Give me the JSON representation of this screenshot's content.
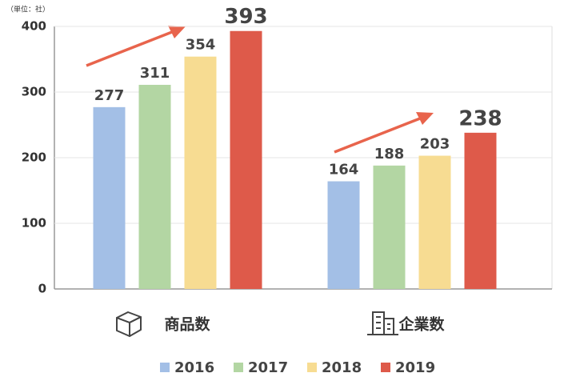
{
  "chart_data": {
    "type": "bar",
    "unit_label": "（単位：社）",
    "categories": [
      "商品数",
      "企業数"
    ],
    "series": [
      {
        "name": "2016",
        "color": "#a3bfe6",
        "values": [
          277,
          164
        ]
      },
      {
        "name": "2017",
        "color": "#b3d6a3",
        "values": [
          311,
          188
        ]
      },
      {
        "name": "2018",
        "color": "#f7dc92",
        "values": [
          354,
          203
        ]
      },
      {
        "name": "2019",
        "color": "#de5a4a",
        "values": [
          393,
          238
        ]
      }
    ],
    "ylim": [
      0,
      400
    ],
    "yticks": [
      0,
      100,
      200,
      300,
      400
    ],
    "grid": true
  }
}
